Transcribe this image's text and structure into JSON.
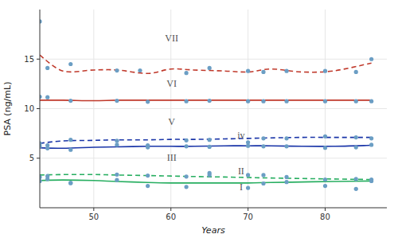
{
  "chart_data": {
    "type": "line",
    "xlabel": "Years",
    "ylabel": "PSA (ng/mL)",
    "xlim": [
      43,
      88
    ],
    "ylim": [
      0,
      20
    ],
    "xticks": [
      50,
      60,
      70,
      80
    ],
    "yticks": [
      5,
      10,
      15
    ],
    "x": [
      43,
      46,
      50,
      53,
      57,
      60,
      63,
      67,
      70,
      73,
      77,
      81,
      86
    ],
    "series": [
      {
        "type": "line",
        "color": "#c0392b",
        "line_style": "dashed",
        "values": [
          15.4,
          13.8,
          13.9,
          13.9,
          13.55,
          14.0,
          13.9,
          13.8,
          13.7,
          14.0,
          13.7,
          13.8,
          14.6
        ]
      },
      {
        "type": "line",
        "color": "#c0392b",
        "line_style": "solid",
        "values": [
          10.85,
          10.85,
          10.8,
          10.85,
          10.85,
          10.85,
          10.85,
          10.85,
          10.85,
          10.85,
          10.85,
          10.85,
          10.85
        ]
      },
      {
        "type": "line",
        "color": "#1a35a8",
        "line_style": "dashed",
        "values": [
          6.5,
          6.75,
          6.8,
          6.85,
          6.85,
          6.9,
          6.9,
          6.95,
          7.0,
          7.05,
          7.1,
          7.1,
          7.1
        ]
      },
      {
        "type": "line",
        "color": "#1a35a8",
        "line_style": "solid",
        "values": [
          6.05,
          6.0,
          6.1,
          6.15,
          6.2,
          6.2,
          6.2,
          6.25,
          6.25,
          6.25,
          6.2,
          6.2,
          6.3
        ]
      },
      {
        "type": "line",
        "color": "#27ae60",
        "line_style": "dashed",
        "values": [
          3.3,
          3.35,
          3.35,
          3.3,
          3.25,
          3.2,
          3.15,
          3.1,
          3.05,
          3.0,
          2.95,
          2.9,
          2.85
        ]
      },
      {
        "type": "line",
        "color": "#27ae60",
        "line_style": "solid",
        "values": [
          2.75,
          2.8,
          2.75,
          2.65,
          2.55,
          2.5,
          2.5,
          2.5,
          2.5,
          2.55,
          2.6,
          2.65,
          2.7
        ]
      },
      {
        "type": "scatter",
        "color": "#6b9ec4",
        "marker": "circle",
        "x": [
          44,
          47,
          53,
          56,
          62,
          65,
          70,
          72,
          75,
          80,
          84,
          86
        ],
        "values": [
          14.1,
          14.5,
          13.85,
          13.85,
          13.6,
          14.1,
          13.8,
          13.7,
          13.8,
          13.8,
          13.7,
          15.0
        ]
      },
      {
        "type": "scatter",
        "color": "#6b9ec4",
        "marker": "circle",
        "x": [
          44,
          47,
          53,
          57,
          62,
          65,
          70,
          72,
          75,
          80,
          84,
          86
        ],
        "values": [
          11.15,
          10.8,
          10.8,
          10.7,
          10.75,
          10.8,
          10.75,
          10.75,
          10.75,
          10.75,
          10.75,
          10.75
        ]
      },
      {
        "type": "scatter",
        "color": "#6b9ec4",
        "marker": "circle",
        "x": [
          44,
          47,
          53,
          57,
          62,
          65,
          70,
          72,
          75,
          80,
          84,
          86
        ],
        "values": [
          6.3,
          6.85,
          6.75,
          6.3,
          6.8,
          6.85,
          6.6,
          7.0,
          7.0,
          7.2,
          7.1,
          7.0
        ]
      },
      {
        "type": "scatter",
        "color": "#6b9ec4",
        "marker": "circle",
        "x": [
          44,
          47,
          53,
          57,
          62,
          65,
          70,
          72,
          75,
          80,
          84,
          86
        ],
        "values": [
          6.0,
          5.85,
          6.35,
          6.1,
          6.2,
          6.15,
          6.25,
          6.2,
          6.2,
          6.05,
          6.1,
          6.35
        ]
      },
      {
        "type": "scatter",
        "color": "#6b9ec4",
        "marker": "circle",
        "x": [
          44,
          47,
          53,
          57,
          62,
          65,
          70,
          72,
          75,
          80,
          84,
          86
        ],
        "values": [
          3.2,
          2.5,
          3.35,
          3.25,
          3.15,
          3.3,
          3.3,
          3.3,
          3.1,
          2.85,
          2.9,
          2.85
        ]
      },
      {
        "type": "scatter",
        "color": "#6b9ec4",
        "marker": "circle",
        "x": [
          44,
          47,
          53,
          57,
          62,
          65,
          70,
          72,
          75,
          80,
          84,
          86
        ],
        "values": [
          2.9,
          2.5,
          2.8,
          2.2,
          2.1,
          3.5,
          2.0,
          2.45,
          2.6,
          2.2,
          1.9,
          2.7
        ]
      },
      {
        "type": "scatter",
        "color": "#6b9ec4",
        "marker": "circle",
        "x": [
          43
        ],
        "values": [
          18.8
        ]
      },
      {
        "type": "scatter",
        "color": "#6b9ec4",
        "marker": "circle",
        "x": [
          43
        ],
        "values": [
          11.2
        ]
      },
      {
        "type": "scatter",
        "color": "#6b9ec4",
        "marker": "circle",
        "x": [
          43
        ],
        "values": [
          6.5
        ]
      },
      {
        "type": "scatter",
        "color": "#6b9ec4",
        "marker": "circle",
        "x": [
          43
        ],
        "values": [
          6.2
        ]
      },
      {
        "type": "scatter",
        "color": "#6b9ec4",
        "marker": "circle",
        "x": [
          43
        ],
        "values": [
          3.1
        ]
      },
      {
        "type": "scatter",
        "color": "#6b9ec4",
        "marker": "circle",
        "x": [
          43
        ],
        "values": [
          2.7
        ]
      }
    ],
    "annotations": [
      {
        "text": "VII",
        "x": 60.1,
        "y": 17.1
      },
      {
        "text": "VI",
        "x": 60.1,
        "y": 12.5
      },
      {
        "text": "V",
        "x": 60.1,
        "y": 8.7
      },
      {
        "text": "iv",
        "x": 69.1,
        "y": 7.3
      },
      {
        "text": "III",
        "x": 60.1,
        "y": 5.1
      },
      {
        "text": "II",
        "x": 69.1,
        "y": 3.7
      },
      {
        "text": "I",
        "x": 69.1,
        "y": 2.1
      }
    ]
  }
}
